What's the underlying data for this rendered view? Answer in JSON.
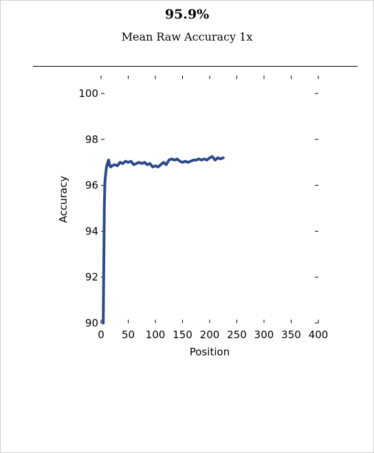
{
  "header": {
    "value": "95.9%",
    "subtitle": "Mean Raw Accuracy 1x"
  },
  "chart_data": {
    "type": "line",
    "xlabel": "Position",
    "ylabel": "Accuracy",
    "xlim": [
      0,
      400
    ],
    "ylim": [
      90,
      100
    ],
    "xticks": [
      "0",
      "50",
      "100",
      "150",
      "200",
      "250",
      "300",
      "350",
      "400"
    ],
    "yticks": [
      "90",
      "92",
      "94",
      "96",
      "98",
      "100"
    ],
    "grid": false,
    "line_color": "#2d4a8a",
    "series": [
      {
        "x": [
          4,
          5,
          6,
          7,
          8,
          9,
          10,
          11,
          12,
          13,
          14,
          16,
          18,
          20,
          25,
          30,
          35,
          40,
          45,
          50,
          55,
          60,
          65,
          70,
          75,
          80,
          85,
          90,
          95,
          100,
          105,
          110,
          115,
          120,
          125,
          130,
          135,
          140,
          145,
          150,
          155,
          160,
          165,
          170,
          175,
          180,
          185,
          190,
          195,
          200,
          205,
          210,
          215,
          220,
          225
        ],
        "y": [
          90.0,
          92.5,
          95.0,
          96.1,
          96.4,
          96.6,
          96.8,
          96.9,
          96.95,
          97.05,
          97.1,
          96.85,
          96.8,
          96.85,
          96.9,
          96.85,
          97.0,
          96.95,
          97.05,
          97.0,
          97.05,
          96.9,
          96.95,
          97.0,
          96.95,
          97.0,
          96.9,
          96.95,
          96.8,
          96.85,
          96.8,
          96.9,
          97.0,
          96.9,
          97.1,
          97.15,
          97.1,
          97.15,
          97.05,
          97.0,
          97.05,
          97.0,
          97.05,
          97.1,
          97.1,
          97.15,
          97.1,
          97.15,
          97.1,
          97.2,
          97.25,
          97.1,
          97.2,
          97.15,
          97.2
        ]
      }
    ]
  }
}
